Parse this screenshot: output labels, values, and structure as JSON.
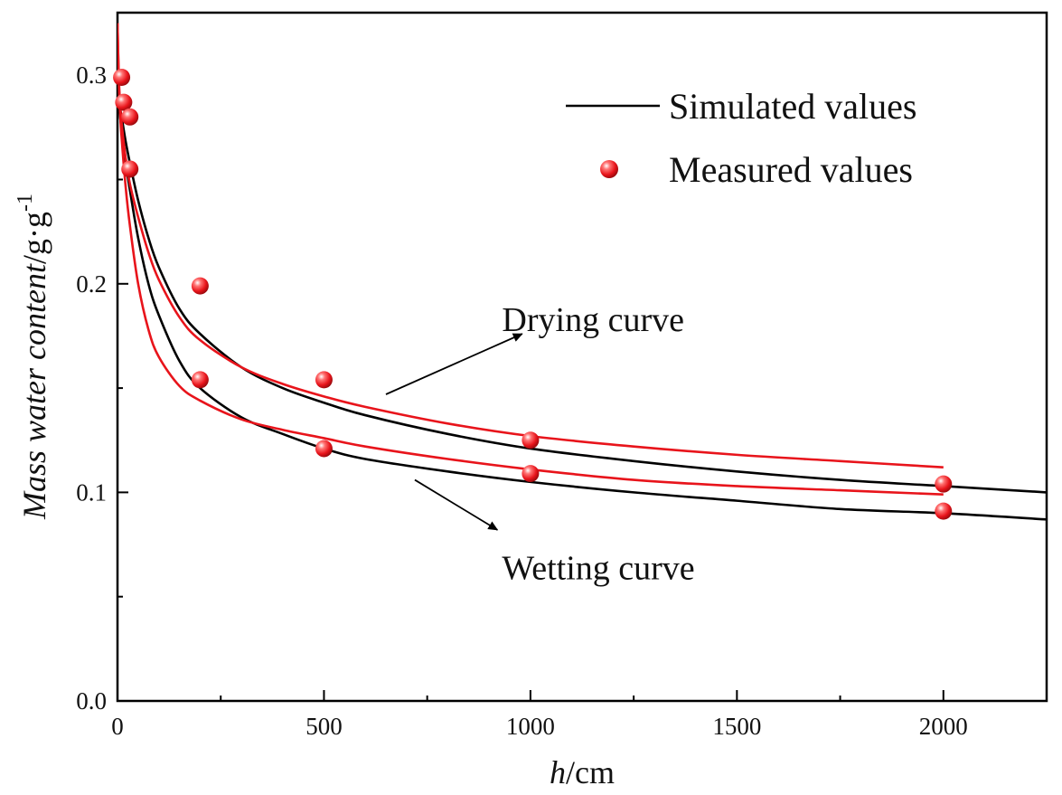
{
  "chart_data": {
    "type": "line",
    "title": "",
    "xlabel": {
      "italic": "h",
      "rest": "/cm"
    },
    "ylabel": {
      "italic": "Mass water content",
      "rest": "/g·g",
      "sup": "-1"
    },
    "xlim": [
      0,
      2250
    ],
    "ylim": [
      0.0,
      0.33
    ],
    "x_ticks": [
      0,
      500,
      1000,
      1500,
      2000
    ],
    "x_tick_labels": [
      "0",
      "500",
      "1000",
      "1500",
      "2000"
    ],
    "y_ticks": [
      0.0,
      0.1,
      0.2,
      0.3
    ],
    "y_tick_labels": [
      "0.0",
      "0.1",
      "0.2",
      "0.3"
    ],
    "grid": false,
    "legend": {
      "position": "top-right",
      "entries": [
        {
          "label": "Simulated values",
          "kind": "line",
          "color": "#000000"
        },
        {
          "label": "Measured values",
          "kind": "marker",
          "color": "#e8141b"
        }
      ]
    },
    "series": [
      {
        "name": "Simulated drying (black)",
        "kind": "line",
        "color": "#000000",
        "x": [
          0,
          5,
          10,
          20,
          30,
          50,
          75,
          100,
          150,
          200,
          300,
          400,
          500,
          600,
          800,
          1000,
          1250,
          1500,
          1750,
          2000,
          2250
        ],
        "values": [
          0.29,
          0.285,
          0.28,
          0.268,
          0.258,
          0.24,
          0.222,
          0.208,
          0.188,
          0.176,
          0.16,
          0.15,
          0.143,
          0.137,
          0.128,
          0.121,
          0.115,
          0.11,
          0.106,
          0.103,
          0.1
        ]
      },
      {
        "name": "Simulated wetting (black)",
        "kind": "line",
        "color": "#000000",
        "x": [
          0,
          5,
          10,
          20,
          30,
          50,
          75,
          100,
          150,
          200,
          300,
          400,
          500,
          600,
          800,
          1000,
          1250,
          1500,
          1750,
          2000,
          2250
        ],
        "values": [
          0.29,
          0.282,
          0.274,
          0.258,
          0.245,
          0.222,
          0.2,
          0.185,
          0.163,
          0.15,
          0.136,
          0.128,
          0.121,
          0.116,
          0.11,
          0.105,
          0.1,
          0.096,
          0.092,
          0.09,
          0.087
        ]
      },
      {
        "name": "Fitted drying (red)",
        "kind": "line",
        "color": "#e8141b",
        "x": [
          0,
          3,
          6,
          10,
          20,
          30,
          50,
          75,
          100,
          150,
          200,
          300,
          400,
          500,
          600,
          800,
          1000,
          1250,
          1500,
          1750,
          2000
        ],
        "values": [
          0.325,
          0.3,
          0.287,
          0.277,
          0.26,
          0.248,
          0.232,
          0.215,
          0.202,
          0.184,
          0.173,
          0.16,
          0.152,
          0.146,
          0.141,
          0.133,
          0.127,
          0.122,
          0.118,
          0.115,
          0.112
        ]
      },
      {
        "name": "Fitted wetting (red)",
        "kind": "line",
        "color": "#e8141b",
        "x": [
          0,
          3,
          6,
          10,
          20,
          30,
          50,
          75,
          100,
          150,
          200,
          300,
          400,
          500,
          600,
          800,
          1000,
          1250,
          1500,
          1750,
          2000
        ],
        "values": [
          0.325,
          0.298,
          0.283,
          0.27,
          0.246,
          0.228,
          0.2,
          0.178,
          0.165,
          0.151,
          0.144,
          0.135,
          0.13,
          0.126,
          0.122,
          0.116,
          0.111,
          0.106,
          0.103,
          0.101,
          0.099
        ]
      },
      {
        "name": "Measured values",
        "kind": "scatter",
        "color": "#e8141b",
        "x": [
          10,
          15,
          30,
          30,
          200,
          200,
          500,
          500,
          1000,
          1000,
          2000,
          2000
        ],
        "values": [
          0.299,
          0.287,
          0.28,
          0.255,
          0.199,
          0.154,
          0.154,
          0.121,
          0.125,
          0.109,
          0.104,
          0.091
        ]
      }
    ],
    "annotations": [
      {
        "text": "Drying curve",
        "x": 1150,
        "y": 0.183,
        "arrow_from": [
          650,
          0.147
        ],
        "arrow_to": [
          980,
          0.176
        ]
      },
      {
        "text": "Wetting curve",
        "x": 1150,
        "y": 0.064,
        "arrow_from": [
          720,
          0.106
        ],
        "arrow_to": [
          920,
          0.082
        ]
      }
    ]
  }
}
